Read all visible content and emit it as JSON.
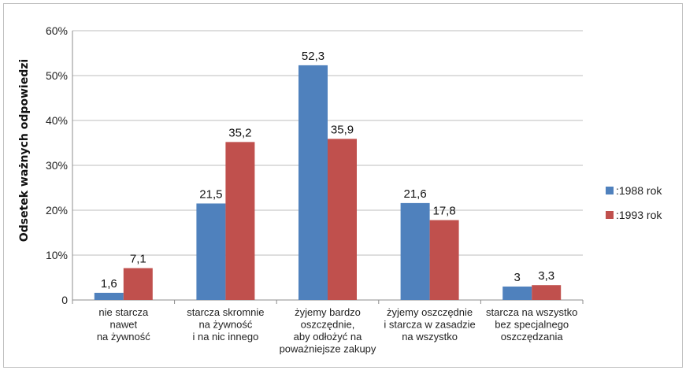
{
  "chart_data": {
    "type": "bar",
    "title": "",
    "ylabel": "Odsetek ważnych odpowiedzi",
    "xlabel": "",
    "ylim": [
      0,
      60
    ],
    "y_ticks": [
      "0",
      "10%",
      "20%",
      "30%",
      "40%",
      "50%",
      "60%"
    ],
    "y_tick_values": [
      0,
      10,
      20,
      30,
      40,
      50,
      60
    ],
    "grid": true,
    "legend_position": "right",
    "categories": [
      [
        "nie starcza",
        "nawet",
        "na żywność"
      ],
      [
        "starcza skromnie",
        "na żywność",
        "i na nic innego"
      ],
      [
        "żyjemy bardzo",
        "oszczędnie,",
        "aby odłożyć na",
        "poważniejsze zakupy"
      ],
      [
        "żyjemy oszczędnie",
        "i starcza w zasadzie",
        "na wszystko"
      ],
      [
        "starcza na wszystko",
        "bez specjalnego",
        "oszczędzania"
      ]
    ],
    "series": [
      {
        "name": ":1988 rok",
        "color": "#4f81bd",
        "values": [
          1.6,
          21.5,
          52.3,
          21.6,
          3
        ],
        "labels": [
          "1,6",
          "21,5",
          "52,3",
          "21,6",
          "3"
        ]
      },
      {
        "name": ":1993 rok",
        "color": "#c0504d",
        "values": [
          7.1,
          35.2,
          35.9,
          17.8,
          3.3
        ],
        "labels": [
          "7,1",
          "35,2",
          "35,9",
          "17,8",
          "3,3"
        ]
      }
    ]
  }
}
